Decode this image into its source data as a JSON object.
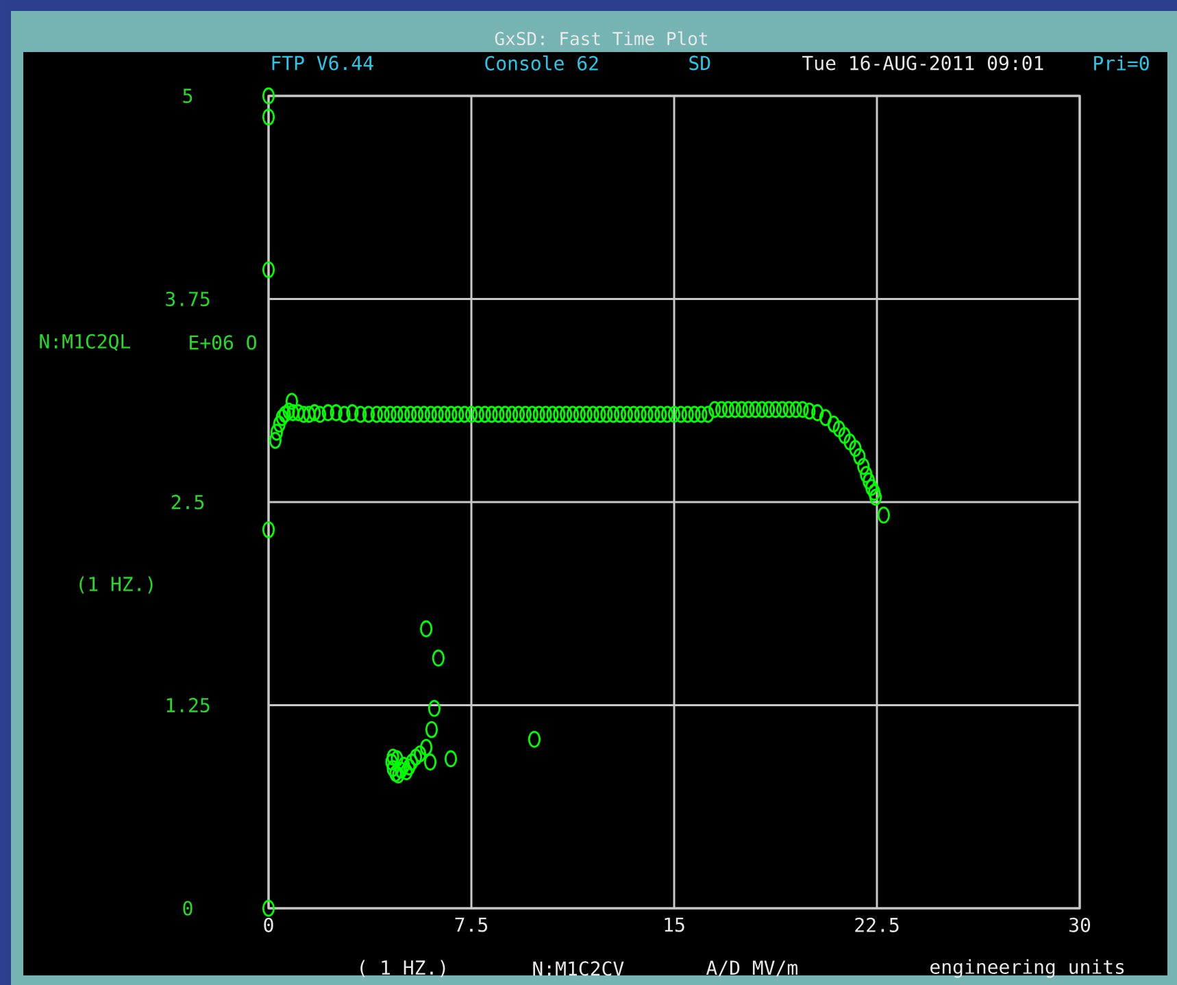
{
  "chart_data": {
    "type": "scatter",
    "title": "GxSD: Fast Time Plot",
    "xlabel": "N:M1C2CV",
    "ylabel": "N:M1C2QL",
    "annotations": [
      "FTP V6.44",
      "Console 62",
      "SD",
      "Tue 16-AUG-2011 09:01",
      "Pri=0",
      "E+06 O",
      "(1 HZ.)",
      "( 1 HZ.)",
      "A/D MV/m",
      "engineering units"
    ],
    "x": [
      0,
      0,
      0,
      0,
      0,
      0.25,
      0.3,
      0.4,
      0.5,
      0.6,
      0.75,
      0.86,
      0.9,
      1.1,
      1.3,
      1.5,
      1.7,
      1.9,
      2.2,
      2.5,
      2.8,
      3.1,
      3.4,
      3.7,
      4,
      4.25,
      4.5,
      4.75,
      5,
      5.25,
      5.5,
      5.75,
      6,
      6.25,
      6.5,
      6.75,
      7,
      7.25,
      7.5,
      7.75,
      8,
      8.25,
      8.5,
      8.75,
      9,
      9.25,
      9.5,
      9.75,
      10,
      10.25,
      10.5,
      10.75,
      11,
      11.25,
      11.5,
      11.75,
      12,
      12.25,
      12.5,
      12.75,
      13,
      13.25,
      13.5,
      13.75,
      14,
      14.25,
      14.5,
      14.75,
      15,
      15.25,
      15.5,
      15.75,
      16,
      16.25,
      16.5,
      16.75,
      17,
      17.25,
      17.5,
      17.75,
      18,
      18.25,
      18.5,
      18.75,
      19,
      19.25,
      19.5,
      19.75,
      20,
      20.3,
      20.6,
      20.9,
      21.1,
      21.3,
      21.5,
      21.7,
      21.85,
      22,
      22.1,
      22.2,
      22.3,
      22.4,
      22.45,
      22.75,
      5.83,
      6.28,
      6.13,
      6.03,
      5.83,
      5.98,
      6.74,
      9.83,
      4.55,
      4.6,
      4.7,
      4.8,
      4.9,
      5,
      5.1,
      5.2,
      5.3,
      5.45,
      5.6,
      4.6,
      4.75
    ],
    "values": [
      5,
      4.87,
      3.93,
      2.33,
      0,
      2.88,
      2.93,
      2.98,
      3.02,
      3.04,
      3.06,
      3.12,
      3.05,
      3.05,
      3.04,
      3.04,
      3.05,
      3.04,
      3.05,
      3.05,
      3.04,
      3.05,
      3.04,
      3.04,
      3.04,
      3.04,
      3.04,
      3.04,
      3.04,
      3.04,
      3.04,
      3.04,
      3.04,
      3.04,
      3.04,
      3.04,
      3.04,
      3.04,
      3.04,
      3.04,
      3.04,
      3.04,
      3.04,
      3.04,
      3.04,
      3.04,
      3.04,
      3.04,
      3.04,
      3.04,
      3.04,
      3.04,
      3.04,
      3.04,
      3.04,
      3.04,
      3.04,
      3.04,
      3.04,
      3.04,
      3.04,
      3.04,
      3.04,
      3.04,
      3.04,
      3.04,
      3.04,
      3.04,
      3.04,
      3.04,
      3.04,
      3.04,
      3.04,
      3.04,
      3.07,
      3.07,
      3.07,
      3.07,
      3.07,
      3.07,
      3.07,
      3.07,
      3.07,
      3.07,
      3.07,
      3.07,
      3.07,
      3.07,
      3.06,
      3.05,
      3.02,
      2.98,
      2.95,
      2.91,
      2.87,
      2.83,
      2.78,
      2.72,
      2.67,
      2.63,
      2.59,
      2.56,
      2.53,
      2.42,
      1.72,
      1.54,
      1.23,
      1.1,
      0.99,
      0.9,
      0.92,
      1.04,
      0.9,
      0.86,
      0.83,
      0.82,
      0.85,
      0.88,
      0.84,
      0.87,
      0.9,
      0.93,
      0.95,
      0.93,
      0.92
    ],
    "color": "#00ff00",
    "marker": "circle",
    "grid": true,
    "xlim": [
      0,
      30
    ],
    "xticks": [
      0,
      7.5,
      15,
      22.5,
      30
    ],
    "ylim": [
      0,
      5
    ],
    "yticks": [
      0,
      1.25,
      2.5,
      3.75,
      5
    ]
  }
}
